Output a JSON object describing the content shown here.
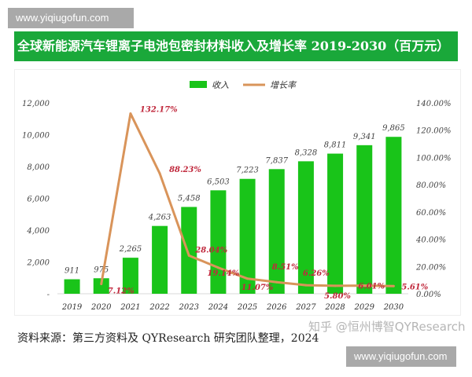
{
  "watermark_top": "www.yiqiugofun.com",
  "watermark_bottom": "www.yiqiugofun.com",
  "zhihu_watermark": "知乎 @恒州博智QYResearch",
  "source": "资料来源：第三方资料及 QYResearch 研究团队整理，2024",
  "chart_data": {
    "type": "bar+line",
    "title": "全球新能源汽车锂离子电池包密封材料收入及增长率 2019-2030（百万元）",
    "categories": [
      "2019",
      "2020",
      "2021",
      "2022",
      "2023",
      "2024",
      "2025",
      "2026",
      "2027",
      "2028",
      "2029",
      "2030"
    ],
    "series": [
      {
        "name": "收入",
        "type": "bar",
        "axis": "left",
        "color": "#19c419",
        "values": [
          911,
          975,
          2265,
          4263,
          5458,
          6503,
          7223,
          7837,
          8328,
          8811,
          9341,
          9865
        ],
        "labels": [
          "911",
          "975",
          "2,265",
          "4,263",
          "5,458",
          "6,503",
          "7,223",
          "7,837",
          "8,328",
          "8,811",
          "9,341",
          "9,865"
        ]
      },
      {
        "name": "增长率",
        "type": "line",
        "axis": "right",
        "color": "#d9945a",
        "values": [
          null,
          7.12,
          132.17,
          88.23,
          28.04,
          19.14,
          11.07,
          8.51,
          6.26,
          5.8,
          6.01,
          5.61
        ],
        "labels": [
          "",
          "7.12%",
          "132.17%",
          "88.23%",
          "28.04%",
          "19.14%",
          "11.07%",
          "8.51%",
          "6.26%",
          "5.80%",
          "6.01%",
          "5.61%"
        ]
      }
    ],
    "left_axis": {
      "ylim": [
        0,
        12000
      ],
      "ticks": [
        "-",
        "2,000",
        "4,000",
        "6,000",
        "8,000",
        "10,000",
        "12,000"
      ]
    },
    "right_axis": {
      "ylim": [
        0,
        140
      ],
      "ticks": [
        "0.00%",
        "20.00%",
        "40.00%",
        "60.00%",
        "80.00%",
        "100.00%",
        "120.00%",
        "140.00%"
      ]
    },
    "legend_position": "top-center",
    "grid": false,
    "label_color": "#c0283c"
  }
}
